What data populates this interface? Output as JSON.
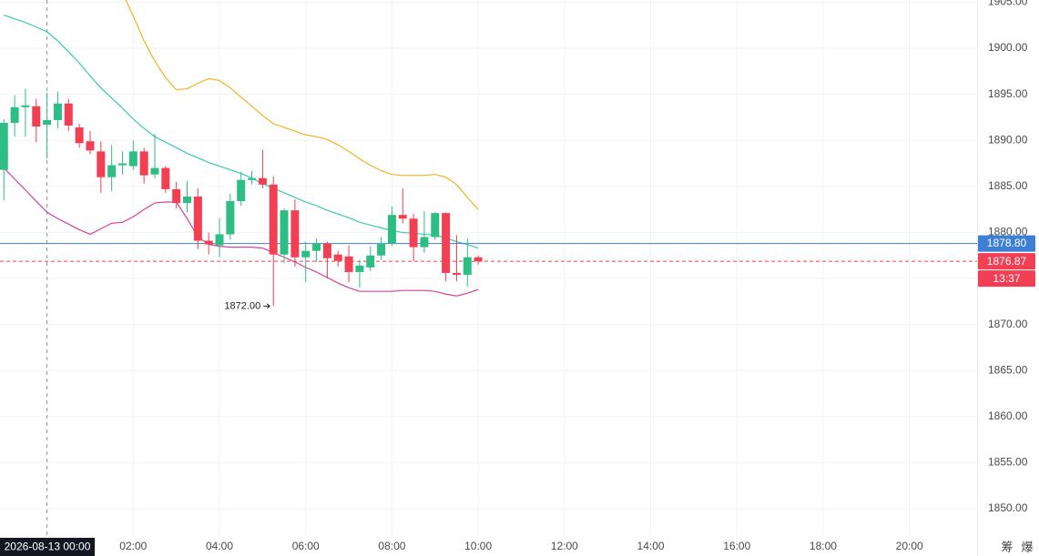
{
  "chart_data": {
    "type": "candlestick",
    "x": [
      -1,
      -0.75,
      -0.5,
      -0.25,
      0,
      0.25,
      0.5,
      0.75,
      1,
      1.25,
      1.5,
      1.75,
      2,
      2.25,
      2.5,
      2.75,
      3,
      3.25,
      3.5,
      3.75,
      4,
      4.25,
      4.5,
      4.75,
      5,
      5.25,
      5.5,
      5.75,
      6,
      6.25,
      6.5,
      6.75,
      7,
      7.25,
      7.5,
      7.75,
      8,
      8.25,
      8.5,
      8.75,
      9,
      9.25,
      9.5,
      9.75,
      10
    ],
    "open": [
      1886.8,
      1891.9,
      1893.6,
      1893.7,
      1891.7,
      1892.2,
      1894.0,
      1891.4,
      1889.9,
      1888.8,
      1886.0,
      1887.3,
      1887.2,
      1888.8,
      1886.3,
      1887.0,
      1884.7,
      1883.2,
      1883.9,
      1879.1,
      1878.6,
      1879.8,
      1883.4,
      1885.7,
      1885.9,
      1885.2,
      1877.6,
      1882.4,
      1877.3,
      1878.0,
      1878.8,
      1877.6,
      1877.4,
      1875.7,
      1876.2,
      1877.5,
      1878.8,
      1881.9,
      1881.5,
      1878.4,
      1879.5,
      1882.1,
      1875.6,
      1875.4,
      1877.3
    ],
    "high": [
      1892.3,
      1894.9,
      1895.6,
      1894.5,
      1895.2,
      1895.3,
      1894.5,
      1891.8,
      1891.0,
      1889.9,
      1889.5,
      1888.8,
      1890.0,
      1889.2,
      1890.7,
      1887.2,
      1885.5,
      1885.6,
      1884.8,
      1880.0,
      1881.6,
      1884.2,
      1886.6,
      1886.7,
      1889.0,
      1886.1,
      1882.6,
      1883.6,
      1879.0,
      1879.3,
      1879.0,
      1878.0,
      1878.6,
      1877.0,
      1878.5,
      1879.5,
      1882.8,
      1884.8,
      1882.0,
      1882.3,
      1882.2,
      1882.2,
      1879.7,
      1879.3,
      1877.5
    ],
    "low": [
      1883.5,
      1890.4,
      1890.4,
      1889.8,
      1888.0,
      1891.3,
      1891.0,
      1889.2,
      1888.5,
      1884.3,
      1884.5,
      1886.3,
      1886.8,
      1885.3,
      1885.9,
      1884.3,
      1882.6,
      1882.2,
      1878.2,
      1877.6,
      1877.3,
      1879.2,
      1882.9,
      1885.2,
      1884.8,
      1872.0,
      1876.7,
      1876.3,
      1874.6,
      1876.8,
      1875.0,
      1876.3,
      1874.6,
      1874.0,
      1875.8,
      1877.0,
      1878.5,
      1881.0,
      1876.9,
      1877.8,
      1879.2,
      1874.7,
      1874.7,
      1874.1,
      1876.5
    ],
    "close": [
      1891.9,
      1893.6,
      1893.8,
      1891.5,
      1892.2,
      1894.0,
      1891.6,
      1889.7,
      1888.9,
      1886.0,
      1887.3,
      1887.5,
      1888.8,
      1886.2,
      1887.0,
      1884.7,
      1883.2,
      1883.9,
      1879.1,
      1878.7,
      1879.8,
      1883.4,
      1885.7,
      1885.9,
      1885.2,
      1877.6,
      1882.4,
      1877.3,
      1878.0,
      1878.8,
      1877.2,
      1876.9,
      1875.7,
      1876.4,
      1877.5,
      1878.8,
      1881.9,
      1881.5,
      1878.4,
      1879.5,
      1882.1,
      1875.6,
      1875.4,
      1877.3,
      1876.87
    ],
    "up_color": "#2ebd85",
    "down_color": "#f23f54",
    "lines": [
      {
        "color": "#f0b323",
        "values": [
          null,
          null,
          null,
          null,
          null,
          null,
          null,
          null,
          null,
          null,
          null,
          1906.0,
          1903.5,
          1900.8,
          1898.6,
          1896.8,
          1895.5,
          1895.6,
          1896.2,
          1896.7,
          1896.5,
          1895.7,
          1894.7,
          1893.7,
          1892.7,
          1891.8,
          1891.4,
          1891.0,
          1890.6,
          1890.4,
          1890.1,
          1889.5,
          1888.8,
          1888.0,
          1887.3,
          1886.7,
          1886.3,
          1886.2,
          1886.2,
          1886.2,
          1886.3,
          1886.0,
          1885.2,
          1883.8,
          1882.5
        ]
      },
      {
        "color": "#3cc7b4",
        "values": [
          1903.6,
          1903.2,
          1902.8,
          1902.3,
          1901.8,
          1900.8,
          1899.6,
          1898.4,
          1897.0,
          1895.7,
          1894.6,
          1893.5,
          1892.3,
          1891.3,
          1890.4,
          1889.8,
          1889.2,
          1888.6,
          1888.1,
          1887.6,
          1887.2,
          1886.8,
          1886.4,
          1885.9,
          1885.3,
          1884.8,
          1884.3,
          1883.8,
          1883.3,
          1882.9,
          1882.4,
          1882.0,
          1881.6,
          1881.1,
          1880.8,
          1880.5,
          1880.2,
          1880.0,
          1879.9,
          1879.8,
          1879.7,
          1879.4,
          1879.0,
          1878.7,
          1878.3
        ]
      },
      {
        "color": "#d6419b",
        "values": [
          1887.0,
          1885.8,
          1884.6,
          1883.4,
          1882.2,
          1881.5,
          1880.9,
          1880.3,
          1879.8,
          1880.4,
          1881.0,
          1881.1,
          1881.7,
          1882.5,
          1883.2,
          1883.3,
          1883.3,
          1881.5,
          1879.5,
          1878.7,
          1878.5,
          1878.4,
          1878.4,
          1878.4,
          1878.3,
          1877.8,
          1877.3,
          1876.8,
          1876.2,
          1875.7,
          1875.1,
          1874.5,
          1874.0,
          1873.6,
          1873.6,
          1873.6,
          1873.6,
          1873.7,
          1873.7,
          1873.7,
          1873.6,
          1873.3,
          1873.1,
          1873.4,
          1873.8
        ]
      }
    ],
    "xlim": [
      -1.09,
      21.57
    ],
    "xticks": [
      {
        "value": 2,
        "label": "02:00"
      },
      {
        "value": 4,
        "label": "04:00"
      },
      {
        "value": 6,
        "label": "06:00"
      },
      {
        "value": 8,
        "label": "08:00"
      },
      {
        "value": 10,
        "label": "10:00"
      },
      {
        "value": 12,
        "label": "12:00"
      },
      {
        "value": 14,
        "label": "14:00"
      },
      {
        "value": 16,
        "label": "16:00"
      },
      {
        "value": 18,
        "label": "18:00"
      },
      {
        "value": 20,
        "label": "20:00"
      }
    ],
    "ylim": [
      1846.94,
      1905.24
    ],
    "yticks": [
      {
        "value": 1850,
        "label": "1850.00"
      },
      {
        "value": 1855,
        "label": "1855.00"
      },
      {
        "value": 1860,
        "label": "1860.00"
      },
      {
        "value": 1865,
        "label": "1865.00"
      },
      {
        "value": 1870,
        "label": "1870.00"
      },
      {
        "value": 1875,
        "label": "1875.00"
      },
      {
        "value": 1880,
        "label": "1880.00"
      },
      {
        "value": 1885,
        "label": "1885.00"
      },
      {
        "value": 1890,
        "label": "1890.00"
      },
      {
        "value": 1895,
        "label": "1895.00"
      },
      {
        "value": 1900,
        "label": "1900.00"
      },
      {
        "value": 1905,
        "label": "1905.00"
      }
    ],
    "grid": true,
    "reference_price": {
      "value": 1878.8,
      "label": "1878.80",
      "color": "#3d7fd6"
    },
    "last_price": 1876.87,
    "countdown": "13:37",
    "low_marker": {
      "value": 1872,
      "label": "1872.00"
    },
    "crosshair": {
      "value": 0,
      "label": "2026-08-13 00:00"
    },
    "corner_buttons": [
      "筹",
      "爆"
    ]
  }
}
